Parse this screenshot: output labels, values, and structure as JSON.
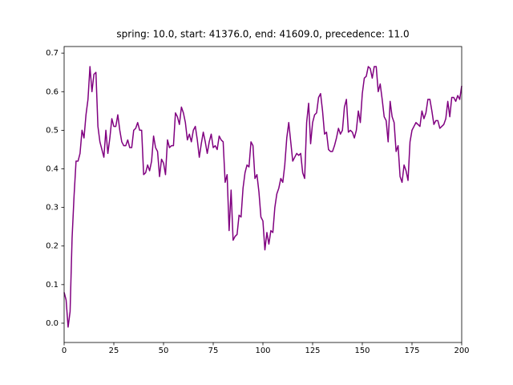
{
  "chart_data": {
    "type": "line",
    "title": "spring: 10.0, start: 41376.0, end: 41609.0, precedence: 11.0",
    "x": [
      0,
      1,
      2,
      3,
      4,
      5,
      6,
      7,
      8,
      9,
      10,
      11,
      12,
      13,
      14,
      15,
      16,
      17,
      18,
      19,
      20,
      21,
      22,
      23,
      24,
      25,
      26,
      27,
      28,
      29,
      30,
      31,
      32,
      33,
      34,
      35,
      36,
      37,
      38,
      39,
      40,
      41,
      42,
      43,
      44,
      45,
      46,
      47,
      48,
      49,
      50,
      51,
      52,
      53,
      54,
      55,
      56,
      57,
      58,
      59,
      60,
      61,
      62,
      63,
      64,
      65,
      66,
      67,
      68,
      69,
      70,
      71,
      72,
      73,
      74,
      75,
      76,
      77,
      78,
      79,
      80,
      81,
      82,
      83,
      84,
      85,
      86,
      87,
      88,
      89,
      90,
      91,
      92,
      93,
      94,
      95,
      96,
      97,
      98,
      99,
      100,
      101,
      102,
      103,
      104,
      105,
      106,
      107,
      108,
      109,
      110,
      111,
      112,
      113,
      114,
      115,
      116,
      117,
      118,
      119,
      120,
      121,
      122,
      123,
      124,
      125,
      126,
      127,
      128,
      129,
      130,
      131,
      132,
      133,
      134,
      135,
      136,
      137,
      138,
      139,
      140,
      141,
      142,
      143,
      144,
      145,
      146,
      147,
      148,
      149,
      150,
      151,
      152,
      153,
      154,
      155,
      156,
      157,
      158,
      159,
      160,
      161,
      162,
      163,
      164,
      165,
      166,
      167,
      168,
      169,
      170,
      171,
      172,
      173,
      174,
      175,
      176,
      177,
      178,
      179,
      180,
      181,
      182,
      183,
      184,
      185,
      186,
      187,
      188,
      189,
      190,
      191,
      192,
      193,
      194,
      195,
      196,
      197,
      198,
      199,
      200
    ],
    "series": [
      {
        "color": "#800080",
        "values": [
          0.08,
          0.06,
          -0.01,
          0.03,
          0.22,
          0.33,
          0.42,
          0.42,
          0.44,
          0.5,
          0.48,
          0.54,
          0.58,
          0.665,
          0.6,
          0.645,
          0.65,
          0.51,
          0.47,
          0.45,
          0.43,
          0.5,
          0.44,
          0.48,
          0.53,
          0.51,
          0.51,
          0.54,
          0.5,
          0.47,
          0.46,
          0.46,
          0.475,
          0.455,
          0.455,
          0.5,
          0.505,
          0.52,
          0.5,
          0.5,
          0.385,
          0.39,
          0.41,
          0.395,
          0.42,
          0.485,
          0.455,
          0.445,
          0.38,
          0.425,
          0.415,
          0.385,
          0.475,
          0.455,
          0.46,
          0.46,
          0.545,
          0.535,
          0.515,
          0.56,
          0.545,
          0.52,
          0.475,
          0.49,
          0.47,
          0.5,
          0.51,
          0.475,
          0.43,
          0.465,
          0.495,
          0.47,
          0.44,
          0.47,
          0.49,
          0.455,
          0.46,
          0.45,
          0.485,
          0.475,
          0.47,
          0.365,
          0.385,
          0.24,
          0.345,
          0.215,
          0.225,
          0.23,
          0.28,
          0.275,
          0.35,
          0.39,
          0.41,
          0.405,
          0.47,
          0.46,
          0.375,
          0.385,
          0.34,
          0.275,
          0.265,
          0.19,
          0.235,
          0.205,
          0.24,
          0.235,
          0.3,
          0.335,
          0.35,
          0.375,
          0.365,
          0.41,
          0.48,
          0.52,
          0.47,
          0.42,
          0.43,
          0.44,
          0.435,
          0.44,
          0.39,
          0.375,
          0.52,
          0.57,
          0.465,
          0.52,
          0.54,
          0.545,
          0.585,
          0.595,
          0.55,
          0.49,
          0.495,
          0.45,
          0.445,
          0.445,
          0.46,
          0.48,
          0.505,
          0.49,
          0.5,
          0.56,
          0.58,
          0.495,
          0.5,
          0.495,
          0.48,
          0.5,
          0.55,
          0.52,
          0.595,
          0.635,
          0.64,
          0.665,
          0.66,
          0.635,
          0.665,
          0.665,
          0.6,
          0.62,
          0.58,
          0.535,
          0.525,
          0.47,
          0.575,
          0.535,
          0.52,
          0.445,
          0.46,
          0.38,
          0.365,
          0.41,
          0.395,
          0.37,
          0.47,
          0.5,
          0.51,
          0.52,
          0.515,
          0.51,
          0.55,
          0.53,
          0.545,
          0.58,
          0.58,
          0.55,
          0.515,
          0.525,
          0.525,
          0.505,
          0.51,
          0.515,
          0.53,
          0.575,
          0.535,
          0.585,
          0.585,
          0.575,
          0.59,
          0.58,
          0.615
        ]
      }
    ],
    "xlim": [
      0,
      200
    ],
    "xticks": [
      0,
      25,
      50,
      75,
      100,
      125,
      150,
      175,
      200
    ],
    "ylim": [
      -0.05,
      0.717
    ],
    "yticks": [
      {
        "value": 0,
        "label": "0.0"
      },
      0.1,
      0.2,
      0.3,
      0.4,
      0.5,
      0.6,
      0.7
    ]
  }
}
